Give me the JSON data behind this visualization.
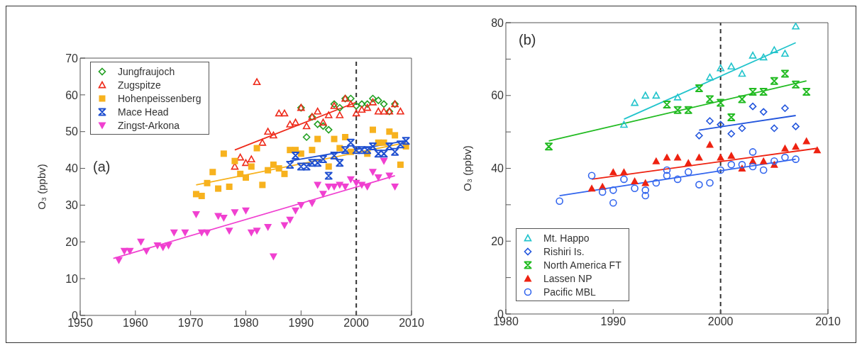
{
  "chart_data": [
    {
      "type": "scatter",
      "ylabel": "O₃ (ppbv)",
      "xlim": [
        1950,
        2010
      ],
      "xticks": [
        1950,
        1960,
        1970,
        1980,
        1990,
        2000,
        2010
      ],
      "ylim": [
        0,
        70
      ],
      "yticks": [
        0,
        10,
        20,
        30,
        40,
        50,
        60,
        70
      ],
      "legend": "top left",
      "annotations": [
        "(a)"
      ],
      "ref_lines": [
        {
          "axis": "x",
          "value": 2000,
          "color": "#333333",
          "line_style": "dashed"
        }
      ],
      "series": [
        {
          "name": "Jungfraujoch",
          "color": "#22a022",
          "marker": "diamond",
          "x": [
            1990,
            1991,
            1992,
            1993,
            1994,
            1995,
            1996,
            1997,
            1998,
            1999,
            2000,
            2001,
            2002,
            2003,
            2004,
            2005,
            2006,
            2007
          ],
          "values": [
            56.5,
            48.5,
            54,
            52,
            51.5,
            50.5,
            57.5,
            56.5,
            59,
            59,
            57,
            57.5,
            57.5,
            59,
            58.5,
            57.5,
            55.5,
            57.5
          ]
        },
        {
          "name": "Zugspitze",
          "color": "#ee2a1a",
          "marker": "triangle",
          "x": [
            1978,
            1979,
            1980,
            1981,
            1982,
            1983,
            1984,
            1985,
            1986,
            1987,
            1988,
            1989,
            1990,
            1991,
            1992,
            1993,
            1994,
            1995,
            1996,
            1997,
            1998,
            1999,
            2000,
            2001,
            2002,
            2003,
            2004,
            2005,
            2006,
            2007,
            2008
          ],
          "values": [
            40.5,
            43,
            41.5,
            42.5,
            63.5,
            47,
            50,
            49,
            55,
            55,
            52,
            52.5,
            56.5,
            51.5,
            54,
            55.5,
            52.5,
            54.5,
            57,
            54.5,
            59,
            57.5,
            55,
            56,
            56.5,
            58,
            55.5,
            55.5,
            55.5,
            57.5,
            55.5
          ]
        },
        {
          "name": "Hohenpeissenberg",
          "color": "#f7b21e",
          "marker": "square",
          "x": [
            1971,
            1972,
            1973,
            1974,
            1975,
            1976,
            1977,
            1978,
            1979,
            1980,
            1981,
            1982,
            1983,
            1984,
            1985,
            1986,
            1987,
            1988,
            1989,
            1990,
            1992,
            1993,
            1995,
            1996,
            1997,
            1998,
            1999,
            2000,
            2001,
            2002,
            2003,
            2004,
            2005,
            2006,
            2007,
            2008,
            2009
          ],
          "values": [
            33,
            32.5,
            36,
            39,
            34.5,
            44,
            35,
            42,
            38.5,
            37.5,
            40.5,
            45.5,
            35.5,
            39.5,
            41,
            40,
            38.5,
            45,
            45,
            44,
            45,
            48,
            40.5,
            48,
            45.5,
            48.5,
            44.5,
            null,
            null,
            44,
            50.5,
            47,
            47,
            50,
            49,
            41,
            46
          ]
        },
        {
          "name": "Mace Head",
          "color": "#2050d0",
          "marker": "cross",
          "x": [
            1988,
            1989,
            1990,
            1991,
            1992,
            1993,
            1994,
            1995,
            1996,
            1997,
            1998,
            1999,
            2000,
            2001,
            2002,
            2003,
            2004,
            2005,
            2006,
            2007,
            2008,
            2009
          ],
          "values": [
            41,
            43.5,
            40.5,
            40.5,
            41.5,
            41.5,
            42.5,
            38,
            43.5,
            41.5,
            45,
            47,
            45,
            45,
            45,
            46,
            44,
            44,
            46,
            44.5,
            46.5,
            47.5
          ]
        },
        {
          "name": "Zingst-Arkona",
          "color": "#f040d0",
          "marker": "triangle-down",
          "x": [
            1957,
            1958,
            1959,
            1961,
            1962,
            1964,
            1965,
            1966,
            1967,
            1969,
            1971,
            1972,
            1973,
            1975,
            1976,
            1977,
            1978,
            1980,
            1981,
            1982,
            1984,
            1985,
            1987,
            1988,
            1989,
            1990,
            1992,
            1993,
            1994,
            1995,
            1996,
            1997,
            1998,
            1999,
            2000,
            2001,
            2002,
            2003,
            2004,
            2005,
            2006,
            2007
          ],
          "values": [
            15,
            17.5,
            17.5,
            20,
            17.5,
            19,
            18.5,
            19,
            22.5,
            22.5,
            27.5,
            22.5,
            22.5,
            27,
            26.5,
            23,
            28,
            28.5,
            22.5,
            23,
            24,
            16,
            24.5,
            26,
            28.5,
            30,
            30.5,
            35.5,
            33,
            35,
            35,
            35.5,
            35,
            37,
            36,
            35.5,
            35,
            39,
            37.5,
            42,
            38,
            35
          ]
        },
        {
          "type": "line",
          "color": "#ee2a1a",
          "x": [
            1978,
            2000
          ],
          "values": [
            45,
            58
          ]
        },
        {
          "type": "line",
          "color": "#f7b21e",
          "x": [
            1971,
            2009
          ],
          "values": [
            35.5,
            47
          ]
        },
        {
          "type": "line",
          "color": "#2050d0",
          "x": [
            1988,
            2009
          ],
          "values": [
            42,
            47.5
          ]
        },
        {
          "type": "line",
          "color": "#f040d0",
          "x": [
            1956,
            2007
          ],
          "values": [
            15.5,
            38
          ]
        }
      ]
    },
    {
      "type": "scatter",
      "ylabel": "O₃ (ppbv)",
      "xlim": [
        1980,
        2010
      ],
      "xticks": [
        1980,
        1990,
        2000,
        2010
      ],
      "ylim": [
        0,
        80
      ],
      "yticks": [
        0,
        {
          "value": 10,
          "label": null
        },
        20,
        {
          "value": 30,
          "label": null
        },
        40,
        {
          "value": 50,
          "label": null
        },
        60,
        {
          "value": 70,
          "label": null
        },
        80
      ],
      "legend": "bottom left",
      "annotations": [
        "(b)"
      ],
      "ref_lines": [
        {
          "axis": "x",
          "value": 2000,
          "color": "#333333",
          "line_style": "dashed"
        }
      ],
      "series": [
        {
          "name": "Mt. Happo",
          "color": "#22c4cc",
          "marker": "triangle",
          "x": [
            1991,
            1992,
            1993,
            1994,
            1996,
            1999,
            2000,
            2001,
            2002,
            2003,
            2004,
            2005,
            2006,
            2007
          ],
          "values": [
            52,
            58,
            60,
            60,
            59.5,
            65,
            67.5,
            68,
            66,
            71,
            70.5,
            72.5,
            71.5,
            79
          ]
        },
        {
          "name": "Rishiri Is.",
          "color": "#2255dd",
          "marker": "diamond",
          "x": [
            1998,
            1999,
            2000,
            2001,
            2002,
            2003,
            2004,
            2005,
            2006,
            2007
          ],
          "values": [
            49,
            53,
            52,
            49.5,
            51,
            57,
            55.5,
            51,
            56.5,
            51.5
          ]
        },
        {
          "name": "North America FT",
          "color": "#22bb22",
          "marker": "cross",
          "x": [
            1984,
            1995,
            1996,
            1997,
            1998,
            1999,
            2000,
            2001,
            2002,
            2003,
            2004,
            2005,
            2006,
            2007,
            2008
          ],
          "values": [
            46,
            57.5,
            56,
            56,
            62,
            59,
            58,
            54,
            59,
            61,
            61,
            64,
            66,
            63,
            61
          ]
        },
        {
          "name": "Lassen NP",
          "color": "#ee2211",
          "marker": "triangle-filled",
          "x": [
            1988,
            1989,
            1990,
            1991,
            1992,
            1993,
            1994,
            1995,
            1996,
            1997,
            1998,
            1999,
            2000,
            2001,
            2002,
            2003,
            2004,
            2005,
            2006,
            2007,
            2008,
            2009
          ],
          "values": [
            34.5,
            35,
            39,
            39,
            36.5,
            36,
            42,
            43,
            43,
            41.5,
            43,
            46.5,
            43,
            43.5,
            40,
            42,
            42,
            41,
            45.5,
            46,
            47.5,
            45
          ]
        },
        {
          "name": "Pacific MBL",
          "color": "#3366ee",
          "marker": "circle",
          "x": [
            1985,
            1988,
            1989,
            1990,
            1990,
            1991,
            1992,
            1993,
            1993,
            1994,
            1995,
            1995,
            1996,
            1997,
            1998,
            1999,
            2000,
            2001,
            2002,
            2003,
            2003,
            2004,
            2005,
            2006,
            2007
          ],
          "values": [
            31,
            38,
            33.5,
            34,
            30.5,
            37,
            34.5,
            34,
            32.5,
            36,
            39.5,
            38,
            37,
            39,
            35.5,
            36,
            39.5,
            41,
            41,
            44.5,
            40.5,
            39.5,
            42,
            43,
            42.5
          ]
        },
        {
          "type": "line",
          "color": "#22c4cc",
          "x": [
            1991,
            2007
          ],
          "values": [
            53.5,
            74.5
          ]
        },
        {
          "type": "line",
          "color": "#22bb22",
          "x": [
            1984,
            2008
          ],
          "values": [
            47.5,
            64
          ]
        },
        {
          "type": "line",
          "color": "#2255dd",
          "x": [
            1998,
            2007
          ],
          "values": [
            50.5,
            54.5
          ]
        },
        {
          "type": "line",
          "color": "#ee2211",
          "x": [
            1988,
            2009
          ],
          "values": [
            37,
            45.5
          ]
        },
        {
          "type": "line",
          "color": "#3366ee",
          "x": [
            1985,
            2007
          ],
          "values": [
            32.5,
            42.5
          ]
        }
      ]
    }
  ]
}
